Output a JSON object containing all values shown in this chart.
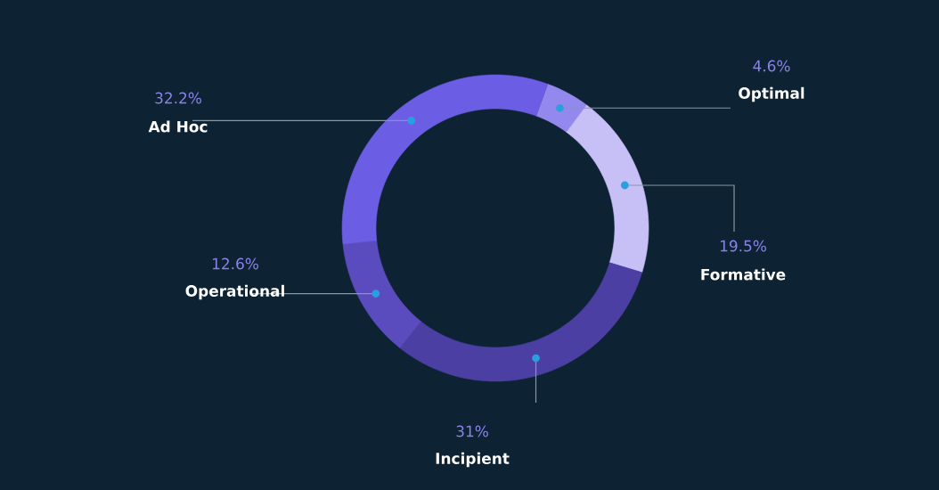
{
  "chart_data": {
    "type": "donut",
    "categories": [
      "Optimal",
      "Formative",
      "Incipient",
      "Operational",
      "Ad Hoc"
    ],
    "values": [
      4.6,
      19.5,
      31,
      12.6,
      32.2
    ],
    "value_labels": [
      "4.6%",
      "19.5%",
      "31%",
      "12.6%",
      "32.2%"
    ],
    "colors": [
      "#9388ee",
      "#c7c0f6",
      "#4b3fa3",
      "#5a4cbf",
      "#6b5de4"
    ]
  }
}
